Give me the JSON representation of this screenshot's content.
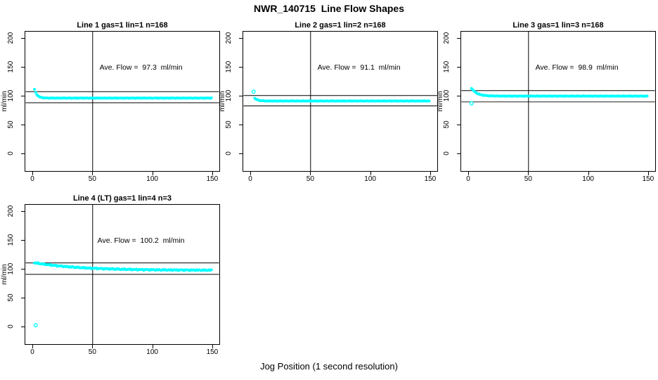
{
  "page": {
    "title": "NWR_140715  Line Flow Shapes",
    "xlabel": "Jog Position (1 second resolution)",
    "background": "#ffffff"
  },
  "style": {
    "point_color": "#00FFFF",
    "line_color": "#000000"
  },
  "axes": {
    "ylabel": "ml/min",
    "x_ticks": [
      0,
      50,
      100,
      150
    ],
    "y_ticks": [
      0,
      50,
      100,
      150,
      200
    ],
    "xlim": [
      -6.5,
      156.5
    ],
    "ylim": [
      -32,
      212
    ],
    "grid": false
  },
  "chart_data": [
    {
      "type": "scatter",
      "title": "Line 1 gas=1 lin=1 n=168",
      "annotation": "Ave. Flow =  97.3  ml/min",
      "annotation_pos": {
        "x": 90,
        "y": 150
      },
      "ave_flow_ml_min": 97.3,
      "n": 168,
      "vline_x": 50,
      "ref_line_upper": 107.0,
      "ref_line_lower": 87.6,
      "curve": {
        "x0": 1,
        "x1": 150,
        "y_start": 111.0,
        "y_settle": 95.7,
        "tau": 2.2,
        "noise": 0.5
      },
      "outliers": []
    },
    {
      "type": "scatter",
      "title": "Line 2 gas=1 lin=2 n=168",
      "annotation": "Ave. Flow =  91.1  ml/min",
      "annotation_pos": {
        "x": 90,
        "y": 150
      },
      "ave_flow_ml_min": 91.1,
      "n": 168,
      "vline_x": 50,
      "ref_line_upper": 100.2,
      "ref_line_lower": 82.0,
      "curve": {
        "x0": 3,
        "x1": 150,
        "y_start": 95.5,
        "y_settle": 90.6,
        "tau": 2.5,
        "noise": 0.5
      },
      "outliers": [
        [
          2,
          107.0
        ]
      ]
    },
    {
      "type": "scatter",
      "title": "Line 3 gas=1 lin=3 n=168",
      "annotation": "Ave. Flow =  98.9  ml/min",
      "annotation_pos": {
        "x": 90,
        "y": 150
      },
      "ave_flow_ml_min": 98.9,
      "n": 168,
      "vline_x": 50,
      "ref_line_upper": 108.8,
      "ref_line_lower": 89.0,
      "curve": {
        "x0": 2,
        "x1": 150,
        "y_start": 113.0,
        "y_settle": 99.2,
        "tau": 4.5,
        "noise": 0.55
      },
      "outliers": [
        [
          2,
          86.5
        ]
      ]
    },
    {
      "type": "scatter",
      "title": "Line 4 (LT) gas=1 lin=4 n=3",
      "annotation": "Ave. Flow =  100.2  ml/min",
      "annotation_pos": {
        "x": 90,
        "y": 150
      },
      "ave_flow_ml_min": 100.2,
      "n": 3,
      "vline_x": 50,
      "ref_line_upper": 110.2,
      "ref_line_lower": 90.2,
      "curve": {
        "x0": 1,
        "x1": 150,
        "y_start": 110.5,
        "y_settle": 97.2,
        "tau": 38,
        "noise": 1.1
      },
      "outliers": [
        [
          2,
          1.0
        ]
      ]
    }
  ]
}
